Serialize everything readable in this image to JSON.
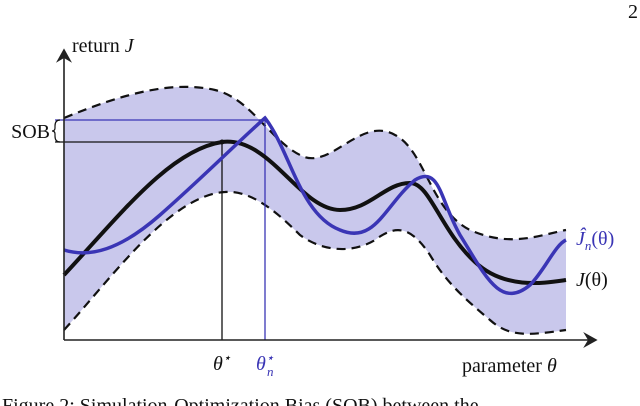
{
  "page_number": "2",
  "y_axis_label": {
    "text": "return ",
    "symbol": "J"
  },
  "x_axis_label": {
    "text": "parameter ",
    "symbol": "θ"
  },
  "bias_label": "SOB",
  "theta_star": {
    "base": "θ",
    "sup": "⋆"
  },
  "theta_n_star": {
    "base": "θ",
    "sub": "n",
    "sup": "⋆"
  },
  "estimate_label": {
    "base": "Ĵ",
    "sub": "n",
    "arg": "(θ)"
  },
  "true_label": {
    "base": "J",
    "arg": "(θ)"
  },
  "caption": "Figure 2: Simulation-Optimization Bias (SOB) between the"
}
